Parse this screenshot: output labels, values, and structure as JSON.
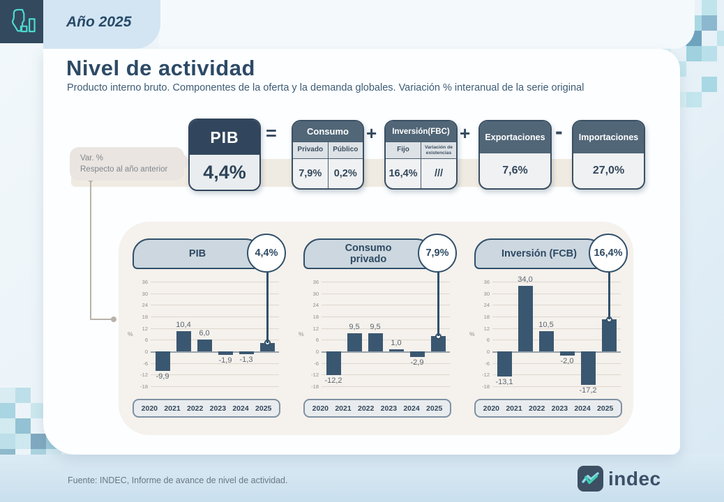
{
  "header": {
    "year": "Año 2025"
  },
  "page": {
    "title": "Nivel de actividad",
    "subtitle": "Producto interno bruto. Componentes de la oferta y la demanda globales. Variación % interanual de la serie original"
  },
  "annotation": {
    "line1": "Var. %",
    "line2": "Respecto al año anterior"
  },
  "equation": {
    "operators": {
      "equals": "=",
      "plus": "+",
      "minus": "-"
    },
    "pib": {
      "label": "PIB",
      "value": "4,4%"
    },
    "consumo": {
      "label": "Consumo",
      "cols": [
        {
          "label": "Privado",
          "value": "7,9%"
        },
        {
          "label": "Público",
          "value": "0,2%"
        }
      ]
    },
    "inversion": {
      "label": "Inversión(FBC)",
      "cols": [
        {
          "label": "Fijo",
          "value": "16,4%"
        },
        {
          "label": "Variación de existencias",
          "value": "///"
        }
      ]
    },
    "exportaciones": {
      "label": "Exportaciones",
      "value": "7,6%"
    },
    "importaciones": {
      "label": "Importaciones",
      "value": "27,0%"
    }
  },
  "chart_data": [
    {
      "type": "bar",
      "title": "PIB",
      "badge": "4,4%",
      "ylabel": "%",
      "categories": [
        "2020",
        "2021",
        "2022",
        "2023",
        "2024",
        "2025"
      ],
      "values": [
        -9.9,
        10.4,
        6.0,
        -1.9,
        -1.3,
        4.4
      ],
      "value_labels": [
        "-9,9",
        "10,4",
        "6,0",
        "-1,9",
        "-1,3",
        null
      ],
      "yticks": [
        36,
        30,
        24,
        18,
        12,
        6,
        0,
        -6,
        -12,
        -18
      ],
      "ylim": [
        -18,
        36
      ],
      "grid": true,
      "highlight_last": true
    },
    {
      "type": "bar",
      "title": "Consumo privado",
      "badge": "7,9%",
      "ylabel": "%",
      "categories": [
        "2020",
        "2021",
        "2022",
        "2023",
        "2024",
        "2025"
      ],
      "values": [
        -12.2,
        9.5,
        9.5,
        1.0,
        -2.9,
        7.9
      ],
      "value_labels": [
        "-12,2",
        "9,5",
        "9,5",
        "1,0",
        "-2,9",
        null
      ],
      "yticks": [
        36,
        30,
        24,
        18,
        12,
        6,
        0,
        -6,
        -12,
        -18
      ],
      "ylim": [
        -18,
        36
      ],
      "grid": true,
      "highlight_last": true
    },
    {
      "type": "bar",
      "title": "Inversión (FCB)",
      "badge": "16,4%",
      "ylabel": "%",
      "categories": [
        "2020",
        "2021",
        "2022",
        "2023",
        "2024",
        "2025"
      ],
      "values": [
        -13.1,
        34.0,
        10.5,
        -2.0,
        -17.2,
        16.4
      ],
      "value_labels": [
        "-13,1",
        "34,0",
        "10,5",
        "-2,0",
        "-17,2",
        null
      ],
      "yticks": [
        36,
        30,
        24,
        18,
        12,
        6,
        0,
        -6,
        -12,
        -18
      ],
      "ylim": [
        -18,
        36
      ],
      "grid": true,
      "highlight_last": true
    }
  ],
  "footer": {
    "source": "Fuente: INDEC, Informe de avance de nivel de actividad.",
    "brand": "indec"
  },
  "colors": {
    "navy": "#31465c",
    "slate": "#516677",
    "bar": "#3a5771",
    "teal": "#4ed9ce",
    "panel_bg": "#f5f1ec",
    "tab_blue": "#d3e5f2",
    "band_beige": "#f0ebe2"
  }
}
